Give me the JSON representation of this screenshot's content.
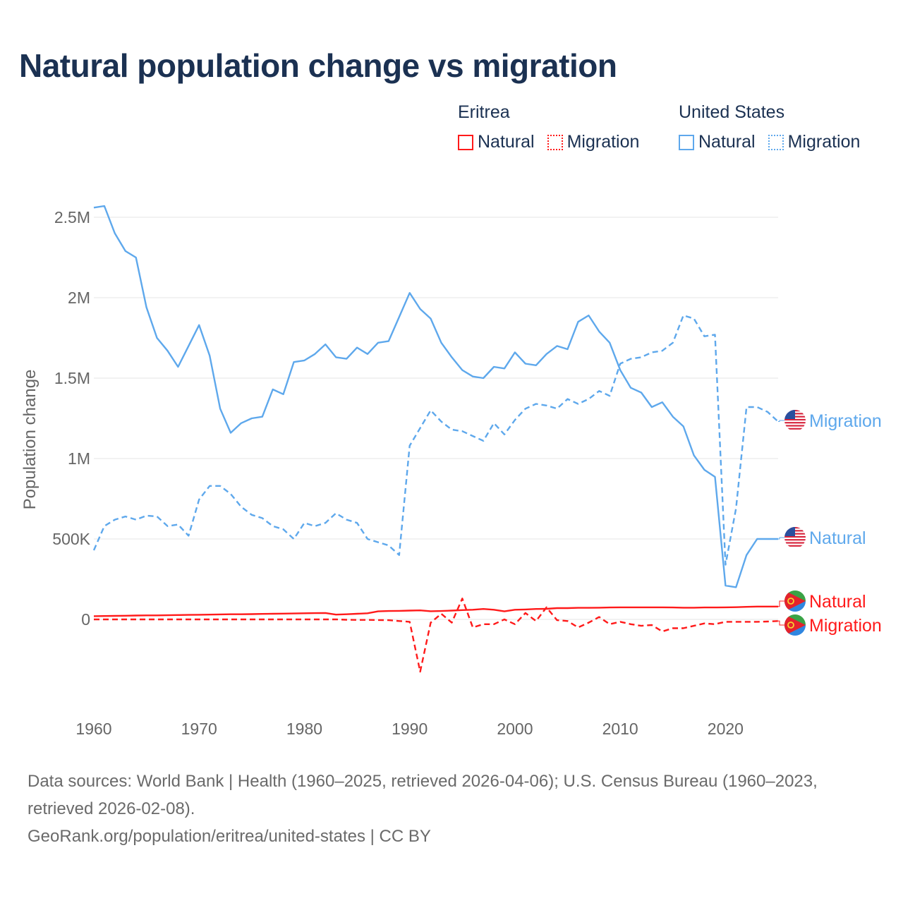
{
  "title": "Natural population change vs migration",
  "legend": [
    {
      "group": "Eritrea",
      "color": "#ff1a1a",
      "items": [
        {
          "label": "Natural",
          "style": "solid"
        },
        {
          "label": "Migration",
          "style": "dotted"
        }
      ]
    },
    {
      "group": "United States",
      "color": "#5ea8ec",
      "items": [
        {
          "label": "Natural",
          "style": "solid"
        },
        {
          "label": "Migration",
          "style": "dotted"
        }
      ]
    }
  ],
  "footer": {
    "sources": "Data sources: World Bank | Health (1960–2025, retrieved 2026-04-06); U.S. Census Bureau (1960–2023, retrieved 2026-02-08).",
    "link": "GeoRank.org/population/eritrea/united-states | CC BY"
  },
  "chart_data": {
    "type": "line",
    "title": "Natural population change vs migration",
    "xlabel": "",
    "ylabel": "Population change",
    "xlim": [
      1960,
      2025
    ],
    "ylim": [
      -550000,
      2600000
    ],
    "x_ticks": [
      1960,
      1970,
      1980,
      1990,
      2000,
      2010,
      2020
    ],
    "x_tick_labels": [
      "1960",
      "1970",
      "1980",
      "1990",
      "2000",
      "2010",
      "2020"
    ],
    "y_ticks": [
      0,
      500000,
      1000000,
      1500000,
      2000000,
      2500000
    ],
    "y_tick_labels": [
      "0",
      "500K",
      "1M",
      "1.5M",
      "2M",
      "2.5M"
    ],
    "grid": true,
    "series": [
      {
        "name": "United States Natural",
        "country": "United States",
        "label": "Natural",
        "color": "#5ea8ec",
        "dash": false,
        "start": 1960,
        "values": [
          2560000,
          2570000,
          2400000,
          2290000,
          2250000,
          1940000,
          1750000,
          1670000,
          1570000,
          1700000,
          1830000,
          1640000,
          1310000,
          1160000,
          1220000,
          1250000,
          1260000,
          1430000,
          1400000,
          1600000,
          1610000,
          1650000,
          1710000,
          1630000,
          1620000,
          1690000,
          1650000,
          1720000,
          1730000,
          1880000,
          2030000,
          1930000,
          1870000,
          1720000,
          1630000,
          1550000,
          1510000,
          1500000,
          1570000,
          1560000,
          1660000,
          1590000,
          1580000,
          1650000,
          1700000,
          1680000,
          1850000,
          1890000,
          1790000,
          1720000,
          1550000,
          1440000,
          1410000,
          1320000,
          1350000,
          1260000,
          1200000,
          1020000,
          930000,
          886000,
          210000,
          200000,
          400000,
          500000,
          500000,
          500000
        ]
      },
      {
        "name": "United States Migration",
        "country": "United States",
        "label": "Migration",
        "color": "#5ea8ec",
        "dash": true,
        "start": 1960,
        "values": [
          430000,
          580000,
          620000,
          640000,
          620000,
          645000,
          640000,
          580000,
          590000,
          520000,
          745000,
          830000,
          830000,
          780000,
          700000,
          650000,
          630000,
          580000,
          560000,
          500000,
          600000,
          580000,
          600000,
          660000,
          620000,
          600000,
          500000,
          480000,
          460000,
          400000,
          1080000,
          1190000,
          1300000,
          1230000,
          1180000,
          1170000,
          1140000,
          1110000,
          1220000,
          1150000,
          1240000,
          1310000,
          1340000,
          1330000,
          1310000,
          1370000,
          1340000,
          1370000,
          1420000,
          1390000,
          1590000,
          1620000,
          1630000,
          1660000,
          1670000,
          1720000,
          1890000,
          1870000,
          1760000,
          1770000,
          340000,
          690000,
          1320000,
          1320000,
          1290000,
          1230000
        ]
      },
      {
        "name": "Eritrea Natural",
        "country": "Eritrea",
        "label": "Natural",
        "color": "#ff1a1a",
        "dash": false,
        "start": 1960,
        "values": [
          20000,
          21000,
          22000,
          23000,
          24000,
          25000,
          25000,
          26000,
          27000,
          28000,
          29000,
          30000,
          31000,
          32000,
          32000,
          33000,
          34000,
          35000,
          36000,
          37000,
          38000,
          39000,
          40000,
          30000,
          32000,
          35000,
          38000,
          50000,
          52000,
          53000,
          55000,
          56000,
          51000,
          52000,
          55000,
          58000,
          60000,
          65000,
          60000,
          50000,
          60000,
          62000,
          65000,
          66000,
          70000,
          70000,
          72000,
          72000,
          73000,
          74000,
          75000,
          75000,
          75000,
          75000,
          75000,
          74000,
          73000,
          73000,
          74000,
          74000,
          75000,
          76000,
          78000,
          80000,
          80000,
          80000
        ]
      },
      {
        "name": "Eritrea Migration",
        "country": "Eritrea",
        "label": "Migration",
        "color": "#ff1a1a",
        "dash": true,
        "start": 1960,
        "values": [
          0,
          0,
          0,
          0,
          0,
          0,
          0,
          0,
          0,
          0,
          0,
          0,
          0,
          0,
          0,
          0,
          0,
          0,
          0,
          0,
          0,
          0,
          0,
          0,
          -2000,
          -3000,
          -3000,
          -4000,
          -5000,
          -10000,
          -15000,
          -325000,
          -20000,
          35000,
          -20000,
          130000,
          -50000,
          -30000,
          -30000,
          0,
          -30000,
          40000,
          -10000,
          75000,
          -5000,
          -10000,
          -50000,
          -20000,
          15000,
          -30000,
          -15000,
          -30000,
          -40000,
          -35000,
          -75000,
          -55000,
          -55000,
          -40000,
          -25000,
          -30000,
          -15000,
          -15000,
          -15000,
          -15000,
          -13000,
          -10000
        ]
      }
    ],
    "end_labels": [
      "Migration",
      "Natural",
      "Natural",
      "Migration"
    ]
  }
}
